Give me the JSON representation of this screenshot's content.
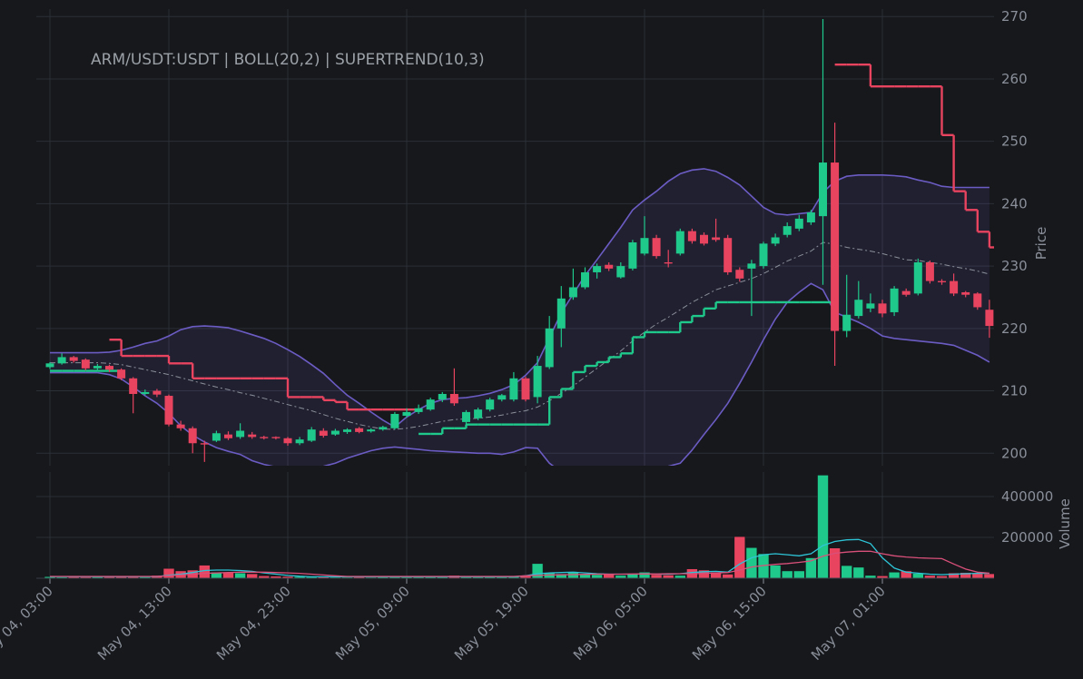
{
  "chart_data": {
    "type": "candlestick",
    "title": "ARM/USDT:USDT | BOLL(20,2) | SUPERTREND(10,3)",
    "ylabel": "Price",
    "volume_label": "Volume",
    "grid": true,
    "up_color": "#1fc98b",
    "down_color": "#e8435f",
    "categories": [
      "May 04, 03:00",
      null,
      null,
      null,
      null,
      null,
      null,
      null,
      null,
      null,
      "May 04, 13:00",
      null,
      null,
      null,
      null,
      null,
      null,
      null,
      null,
      null,
      "May 04, 23:00",
      null,
      null,
      null,
      null,
      null,
      null,
      null,
      null,
      null,
      "May 05, 09:00",
      null,
      null,
      null,
      null,
      null,
      null,
      null,
      null,
      null,
      "May 05, 19:00",
      null,
      null,
      null,
      null,
      null,
      null,
      null,
      null,
      null,
      "May 06, 05:00",
      null,
      null,
      null,
      null,
      null,
      null,
      null,
      null,
      null,
      "May 06, 15:00",
      null,
      null,
      null,
      null,
      null,
      null,
      null,
      null,
      null,
      "May 07, 01:00",
      null,
      null,
      null,
      null,
      null,
      null,
      null,
      null,
      null
    ],
    "open": [
      213.8,
      214.4,
      215.4,
      215,
      213.6,
      214,
      213.4,
      212,
      209.5,
      210,
      209.2,
      204.6,
      204,
      201.6,
      202,
      203,
      202.6,
      203,
      202.6,
      202.6,
      202.4,
      201.6,
      202,
      203.6,
      203,
      203.4,
      204,
      203.5,
      203.8,
      204,
      206,
      206.6,
      207,
      208.6,
      209.5,
      205,
      205.6,
      207,
      208.6,
      208.6,
      212,
      209,
      213.8,
      220,
      225,
      226.6,
      229,
      230.2,
      228.2,
      229.6,
      232,
      234.5,
      230.6,
      232,
      235.6,
      235,
      234.6,
      234.5,
      229.4,
      229.6,
      230,
      233.6,
      235,
      236,
      237,
      238,
      246.6,
      219.6,
      222,
      223.2,
      224,
      222.6,
      226,
      225.6,
      230.6,
      227.6,
      227.6,
      225.8,
      225.6,
      223
    ],
    "high": [
      214.6,
      216,
      215.6,
      215.2,
      214.3,
      214.2,
      213.6,
      212.2,
      210.2,
      210.3,
      209.4,
      205.2,
      204.3,
      202,
      203.6,
      203.5,
      204.8,
      203.4,
      202.8,
      202.7,
      202.6,
      202.6,
      204.2,
      204,
      203.9,
      204,
      204.2,
      204,
      204.4,
      206.6,
      207.2,
      207.8,
      208.9,
      209.8,
      213.6,
      206.9,
      207.3,
      208.9,
      209.5,
      213,
      212.3,
      215.6,
      222,
      226.8,
      229.6,
      229.8,
      230.4,
      230.6,
      230.6,
      234.2,
      238,
      235,
      232.6,
      236,
      236,
      235.4,
      237.6,
      235,
      229.8,
      231,
      233.9,
      235.2,
      237,
      238.2,
      239,
      269.6,
      253,
      228.6,
      227.6,
      225.6,
      224.6,
      226.8,
      226.4,
      231.2,
      230.9,
      227.9,
      228.8,
      226,
      225.8,
      224.6
    ],
    "low": [
      213.5,
      214.2,
      214.5,
      213.3,
      213.3,
      213,
      211.7,
      206.4,
      209.3,
      209,
      204.3,
      203.6,
      200,
      198.6,
      201.8,
      202.1,
      202.3,
      202.3,
      202.2,
      202.2,
      201.2,
      201.3,
      201.8,
      202.5,
      202.8,
      203.1,
      203.2,
      203.3,
      203.6,
      203.8,
      205.7,
      206.3,
      206.8,
      208.2,
      207.6,
      204.5,
      205.3,
      206.7,
      208.3,
      208.3,
      208.3,
      208,
      213.5,
      217,
      224.6,
      226.3,
      228,
      229.2,
      228,
      229.3,
      231.7,
      231.2,
      229.8,
      231.7,
      233.6,
      233.3,
      233.9,
      228.6,
      227.5,
      222,
      229.6,
      233.2,
      234.6,
      235.6,
      236.6,
      227,
      214,
      218.6,
      221.6,
      222.6,
      221.8,
      222,
      225.1,
      225.3,
      227.2,
      227,
      225.2,
      225,
      223,
      218.5
    ],
    "close": [
      214.4,
      215.4,
      214.8,
      213.6,
      214,
      213.4,
      212,
      209.5,
      209.8,
      209.4,
      204.6,
      204,
      201.6,
      201.4,
      203.2,
      202.4,
      203.6,
      202.6,
      202.4,
      202.4,
      201.6,
      202.2,
      203.8,
      202.8,
      203.6,
      203.8,
      203.4,
      203.8,
      204.2,
      206.3,
      206.6,
      207.2,
      208.6,
      209.5,
      208,
      206.6,
      207,
      208.6,
      209.3,
      212,
      208.6,
      214,
      220,
      224.8,
      226.6,
      229,
      230,
      229.6,
      230,
      233.8,
      234.5,
      231.6,
      230.4,
      235.6,
      234,
      233.6,
      234.2,
      229,
      228,
      230.4,
      233.6,
      234.6,
      236.4,
      237.6,
      238.6,
      246.6,
      219.6,
      222.2,
      224.6,
      224,
      222.4,
      226.4,
      225.4,
      230.6,
      227.6,
      227.4,
      225.6,
      225.4,
      223.4,
      220.4
    ],
    "volume": [
      8000,
      6000,
      9000,
      7000,
      9000,
      8000,
      11000,
      9000,
      7000,
      14000,
      48000,
      36000,
      40000,
      64000,
      30000,
      28000,
      26000,
      22000,
      12000,
      10000,
      9000,
      8000,
      7000,
      6000,
      5000,
      5000,
      6000,
      5000,
      8000,
      9000,
      7000,
      6000,
      6000,
      7000,
      14000,
      9000,
      8000,
      8000,
      9000,
      12000,
      11000,
      72000,
      26000,
      22000,
      30000,
      20000,
      18000,
      20000,
      14000,
      24000,
      30000,
      18000,
      16000,
      14000,
      46000,
      40000,
      30000,
      20000,
      204000,
      150000,
      120000,
      64000,
      36000,
      36000,
      100000,
      505000,
      148000,
      62000,
      54000,
      14000,
      12000,
      30000,
      36000,
      24000,
      14000,
      12000,
      26000,
      28000,
      24000,
      22000
    ],
    "ylim": [
      198,
      271.2
    ],
    "yticks": [
      200,
      210,
      220,
      230,
      240,
      250,
      260,
      270
    ],
    "volume_ylim": [
      0,
      520000
    ],
    "volume_yticks": [
      200000,
      400000
    ],
    "bollinger": {
      "color": "#6b5cc4",
      "middle_color": "#8a8f99",
      "upper": [
        216.1,
        216.1,
        216.1,
        216.1,
        216.1,
        216.2,
        216.5,
        217,
        217.6,
        218,
        218.8,
        219.8,
        220.3,
        220.4,
        220.3,
        220.1,
        219.6,
        219,
        218.4,
        217.6,
        216.6,
        215.5,
        214.2,
        212.8,
        211,
        209.3,
        208,
        206.6,
        205.3,
        204.2,
        205.8,
        207,
        208,
        208.6,
        208.8,
        208.9,
        209.2,
        209.6,
        210.2,
        211,
        212.5,
        214.5,
        218.5,
        222.5,
        225.5,
        228.5,
        231,
        233.6,
        236.2,
        239,
        240.6,
        242,
        243.6,
        244.8,
        245.4,
        245.6,
        245.2,
        244.2,
        243,
        241.2,
        239.4,
        238.4,
        238.2,
        238.4,
        238.6,
        241.8,
        243.6,
        244.4,
        244.6,
        244.6,
        244.6,
        244.5,
        244.3,
        243.8,
        243.4,
        242.8,
        242.6,
        242.6,
        242.6,
        242.6
      ],
      "middle": [
        214.5,
        214.5,
        214.5,
        214.5,
        214.5,
        214.4,
        214.2,
        213.8,
        213.4,
        213,
        212.6,
        212.1,
        211.6,
        211.1,
        210.6,
        210.2,
        209.7,
        209.3,
        208.8,
        208.3,
        207.8,
        207.3,
        206.8,
        206.2,
        205.6,
        205.1,
        204.6,
        204.2,
        203.9,
        203.8,
        204,
        204.3,
        204.7,
        205.1,
        205.4,
        205.5,
        205.6,
        205.8,
        206.1,
        206.5,
        206.8,
        207.4,
        208.4,
        209.6,
        210.8,
        212.2,
        213.6,
        215,
        216.4,
        218,
        219.4,
        220.7,
        221.8,
        223,
        224.2,
        225.2,
        226.2,
        226.8,
        227.4,
        228,
        228.8,
        229.8,
        230.8,
        231.6,
        232.4,
        233.8,
        233.5,
        233,
        232.7,
        232.4,
        232,
        231.5,
        231,
        230.9,
        230.6,
        230.3,
        229.9,
        229.6,
        229.2,
        228.7
      ],
      "lower": [
        212.9,
        212.9,
        212.9,
        212.9,
        212.9,
        212.6,
        211.9,
        210.6,
        209.2,
        208,
        206.4,
        204.4,
        202.9,
        201.8,
        200.9,
        200.3,
        199.8,
        198.8,
        198.2,
        197.8,
        197.5,
        197.4,
        197.6,
        197.9,
        198.4,
        199.2,
        199.8,
        200.4,
        200.8,
        201,
        200.8,
        200.6,
        200.4,
        200.3,
        200.2,
        200.1,
        200,
        200,
        199.8,
        200.2,
        200.9,
        200.8,
        198.4,
        197,
        196,
        195.5,
        195.3,
        195.4,
        195.8,
        196.3,
        196.9,
        197.5,
        197.9,
        198.4,
        200.5,
        203,
        205.4,
        208,
        211.2,
        214.6,
        218.2,
        221.5,
        224.2,
        225.8,
        227.2,
        226.2,
        222.6,
        221.8,
        221,
        220,
        218.8,
        218.4,
        218.2,
        218,
        217.8,
        217.6,
        217.3,
        216.5,
        215.7,
        214.6
      ]
    },
    "supertrend": {
      "up": [
        213.2,
        213.2,
        213.2,
        213.2,
        213.2,
        213.2,
        null,
        null,
        null,
        null,
        null,
        null,
        null,
        null,
        null,
        null,
        null,
        null,
        null,
        null,
        null,
        null,
        null,
        null,
        null,
        null,
        null,
        null,
        null,
        null,
        null,
        203.1,
        203.1,
        204,
        204,
        204.6,
        204.6,
        204.6,
        204.6,
        204.6,
        204.6,
        204.6,
        209,
        210.3,
        213,
        214,
        214.6,
        215.4,
        216,
        218.6,
        219.4,
        219.4,
        219.4,
        221,
        222,
        223.2,
        224.2,
        224.2,
        224.2,
        224.2,
        224.2,
        224.2,
        224.2,
        224.2,
        224.2,
        224.2,
        null,
        null,
        null,
        null,
        null,
        null,
        null,
        null,
        null,
        null,
        null,
        null,
        null,
        null
      ],
      "down": [
        null,
        null,
        null,
        null,
        null,
        218.2,
        215.6,
        215.6,
        215.6,
        215.6,
        214.4,
        214.4,
        212,
        212,
        212,
        212,
        212,
        212,
        212,
        212,
        209,
        209,
        209,
        208.5,
        208.2,
        207,
        207,
        207,
        207,
        207,
        207,
        null,
        null,
        null,
        null,
        null,
        null,
        null,
        null,
        null,
        null,
        null,
        null,
        null,
        null,
        null,
        null,
        null,
        null,
        null,
        null,
        null,
        null,
        null,
        null,
        null,
        null,
        null,
        null,
        null,
        null,
        null,
        null,
        null,
        null,
        null,
        262.3,
        262.3,
        262.3,
        258.8,
        258.8,
        258.8,
        258.8,
        258.8,
        258.8,
        251,
        242,
        239,
        235.5,
        233
      ],
      "up_color": "#1fc98b",
      "down_color": "#e8435f"
    },
    "volume_lines": [
      {
        "color": "#2ec4d6",
        "values": [
          8000,
          8000,
          8000,
          8000,
          8000,
          8000,
          8000,
          8000,
          8000,
          8000,
          15000,
          20000,
          28000,
          38000,
          40000,
          40000,
          38000,
          34000,
          26000,
          20000,
          14000,
          10000,
          7000,
          7000,
          7000,
          7000,
          7000,
          7000,
          7000,
          7000,
          7000,
          7000,
          7000,
          7000,
          7000,
          7000,
          7000,
          7000,
          7000,
          7000,
          12000,
          22000,
          26000,
          28000,
          30000,
          26000,
          22000,
          20000,
          20000,
          20000,
          22000,
          20000,
          20000,
          22000,
          28000,
          32000,
          34000,
          30000,
          70000,
          100000,
          115000,
          120000,
          115000,
          110000,
          120000,
          160000,
          180000,
          188000,
          190000,
          170000,
          100000,
          50000,
          30000,
          25000,
          20000,
          18000,
          20000,
          22000,
          24000,
          24000
        ]
      },
      {
        "color": "#d9507a",
        "values": [
          9000,
          9000,
          9000,
          9000,
          9000,
          9000,
          9000,
          9000,
          9000,
          9000,
          12000,
          16000,
          20000,
          24000,
          26000,
          28000,
          30000,
          30000,
          30000,
          28000,
          26000,
          24000,
          20000,
          16000,
          12000,
          9000,
          9000,
          9000,
          9000,
          9000,
          9000,
          9000,
          9000,
          9000,
          9000,
          9000,
          9000,
          9000,
          9000,
          9000,
          12000,
          14000,
          16000,
          17000,
          18000,
          19000,
          20000,
          20000,
          20000,
          21000,
          21000,
          21000,
          22000,
          22000,
          22000,
          24000,
          26000,
          28000,
          40000,
          55000,
          62000,
          68000,
          72000,
          78000,
          85000,
          108000,
          122000,
          128000,
          132000,
          132000,
          120000,
          110000,
          104000,
          100000,
          98000,
          96000,
          70000,
          45000,
          30000,
          25000
        ]
      }
    ]
  }
}
